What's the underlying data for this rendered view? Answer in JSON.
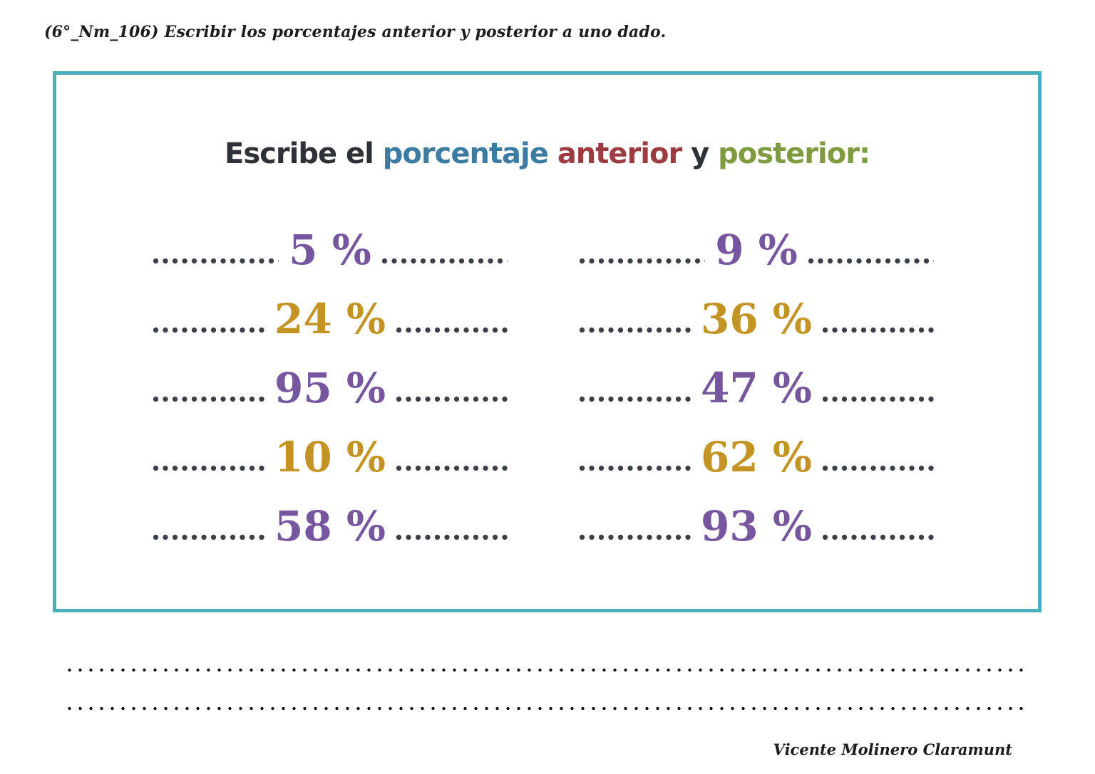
{
  "header": {
    "text": "(6°_Nm_106) Escribir los porcentajes anterior y posterior a uno dado."
  },
  "exercise": {
    "title_parts": [
      {
        "text": "Escribe el ",
        "color": "#2e3138"
      },
      {
        "text": "porcentaje",
        "color": "#3c7ca2"
      },
      {
        "text": " anterior",
        "color": "#9d3b41"
      },
      {
        "text": " y ",
        "color": "#2e3138"
      },
      {
        "text": "posterior:",
        "color": "#7e9b40"
      }
    ],
    "rows": [
      {
        "left": {
          "value": "5 %",
          "color": "#75569f"
        },
        "right": {
          "value": "9 %",
          "color": "#75569f"
        }
      },
      {
        "left": {
          "value": "24 %",
          "color": "#c39424"
        },
        "right": {
          "value": "36 %",
          "color": "#c39424"
        }
      },
      {
        "left": {
          "value": "95 %",
          "color": "#75569f"
        },
        "right": {
          "value": "47 %",
          "color": "#75569f"
        }
      },
      {
        "left": {
          "value": "10 %",
          "color": "#c39424"
        },
        "right": {
          "value": "62 %",
          "color": "#c39424"
        }
      },
      {
        "left": {
          "value": "58 %",
          "color": "#75569f"
        },
        "right": {
          "value": "93 %",
          "color": "#75569f"
        }
      }
    ]
  },
  "footer": {
    "signature": "Vicente Molinero Claramunt"
  },
  "colors": {
    "accent_teal": "#4aaebc",
    "dot_gray": "#3a3e46",
    "line_black": "#141414",
    "text_dark": "#1d1d1f"
  }
}
